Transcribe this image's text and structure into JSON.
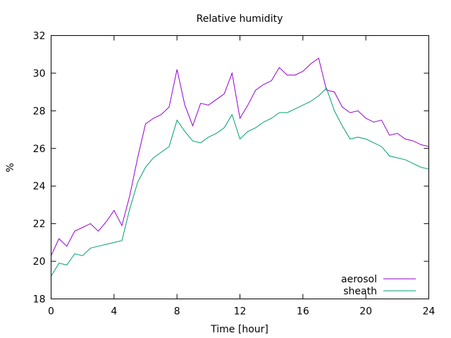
{
  "chart_data": {
    "type": "line",
    "title": "Relative humidity",
    "xlabel": "Time [hour]",
    "ylabel": "%",
    "xlim": [
      0,
      24
    ],
    "ylim": [
      18,
      32
    ],
    "xticks": [
      0,
      4,
      8,
      12,
      16,
      20,
      24
    ],
    "yticks": [
      18,
      20,
      22,
      24,
      26,
      28,
      30,
      32
    ],
    "legend_position": "bottom-right",
    "grid": false,
    "series": [
      {
        "name": "aerosol",
        "color": "#9400d3",
        "x": [
          0,
          0.5,
          1,
          1.5,
          2,
          2.5,
          3,
          3.5,
          4,
          4.5,
          5,
          5.5,
          6,
          6.5,
          7,
          7.5,
          8,
          8.5,
          9,
          9.5,
          10,
          10.5,
          11,
          11.5,
          12,
          12.5,
          13,
          13.5,
          14,
          14.5,
          15,
          15.5,
          16,
          16.5,
          17,
          17.5,
          18,
          18.5,
          19,
          19.5,
          20,
          20.5,
          21,
          21.5,
          22,
          22.5,
          23,
          23.5,
          24
        ],
        "y": [
          20.3,
          21.2,
          20.8,
          21.6,
          21.8,
          22.0,
          21.6,
          22.1,
          22.7,
          21.9,
          23.5,
          25.5,
          27.3,
          27.6,
          27.8,
          28.2,
          30.2,
          28.3,
          27.2,
          28.4,
          28.3,
          28.6,
          28.9,
          30.0,
          27.6,
          28.3,
          29.1,
          29.4,
          29.6,
          30.3,
          29.9,
          29.9,
          30.1,
          30.5,
          30.8,
          29.1,
          29.0,
          28.2,
          27.9,
          28.0,
          27.6,
          27.4,
          27.5,
          26.7,
          26.8,
          26.5,
          26.4,
          26.2,
          26.1
        ]
      },
      {
        "name": "sheath",
        "color": "#009e73",
        "x": [
          0,
          0.5,
          1,
          1.5,
          2,
          2.5,
          3,
          3.5,
          4,
          4.5,
          5,
          5.5,
          6,
          6.5,
          7,
          7.5,
          8,
          8.5,
          9,
          9.5,
          10,
          10.5,
          11,
          11.5,
          12,
          12.5,
          13,
          13.5,
          14,
          14.5,
          15,
          15.5,
          16,
          16.5,
          17,
          17.5,
          18,
          18.5,
          19,
          19.5,
          20,
          20.5,
          21,
          21.5,
          22,
          22.5,
          23,
          23.5,
          24
        ],
        "y": [
          19.2,
          19.9,
          19.8,
          20.4,
          20.3,
          20.7,
          20.8,
          20.9,
          21.0,
          21.1,
          22.8,
          24.2,
          25.0,
          25.5,
          25.8,
          26.1,
          27.5,
          26.9,
          26.4,
          26.3,
          26.6,
          26.8,
          27.1,
          27.8,
          26.5,
          26.9,
          27.1,
          27.4,
          27.6,
          27.9,
          27.9,
          28.1,
          28.3,
          28.5,
          28.8,
          29.2,
          28.0,
          27.2,
          26.5,
          26.6,
          26.5,
          26.3,
          26.1,
          25.6,
          25.5,
          25.4,
          25.2,
          25.0,
          24.9
        ]
      }
    ]
  }
}
